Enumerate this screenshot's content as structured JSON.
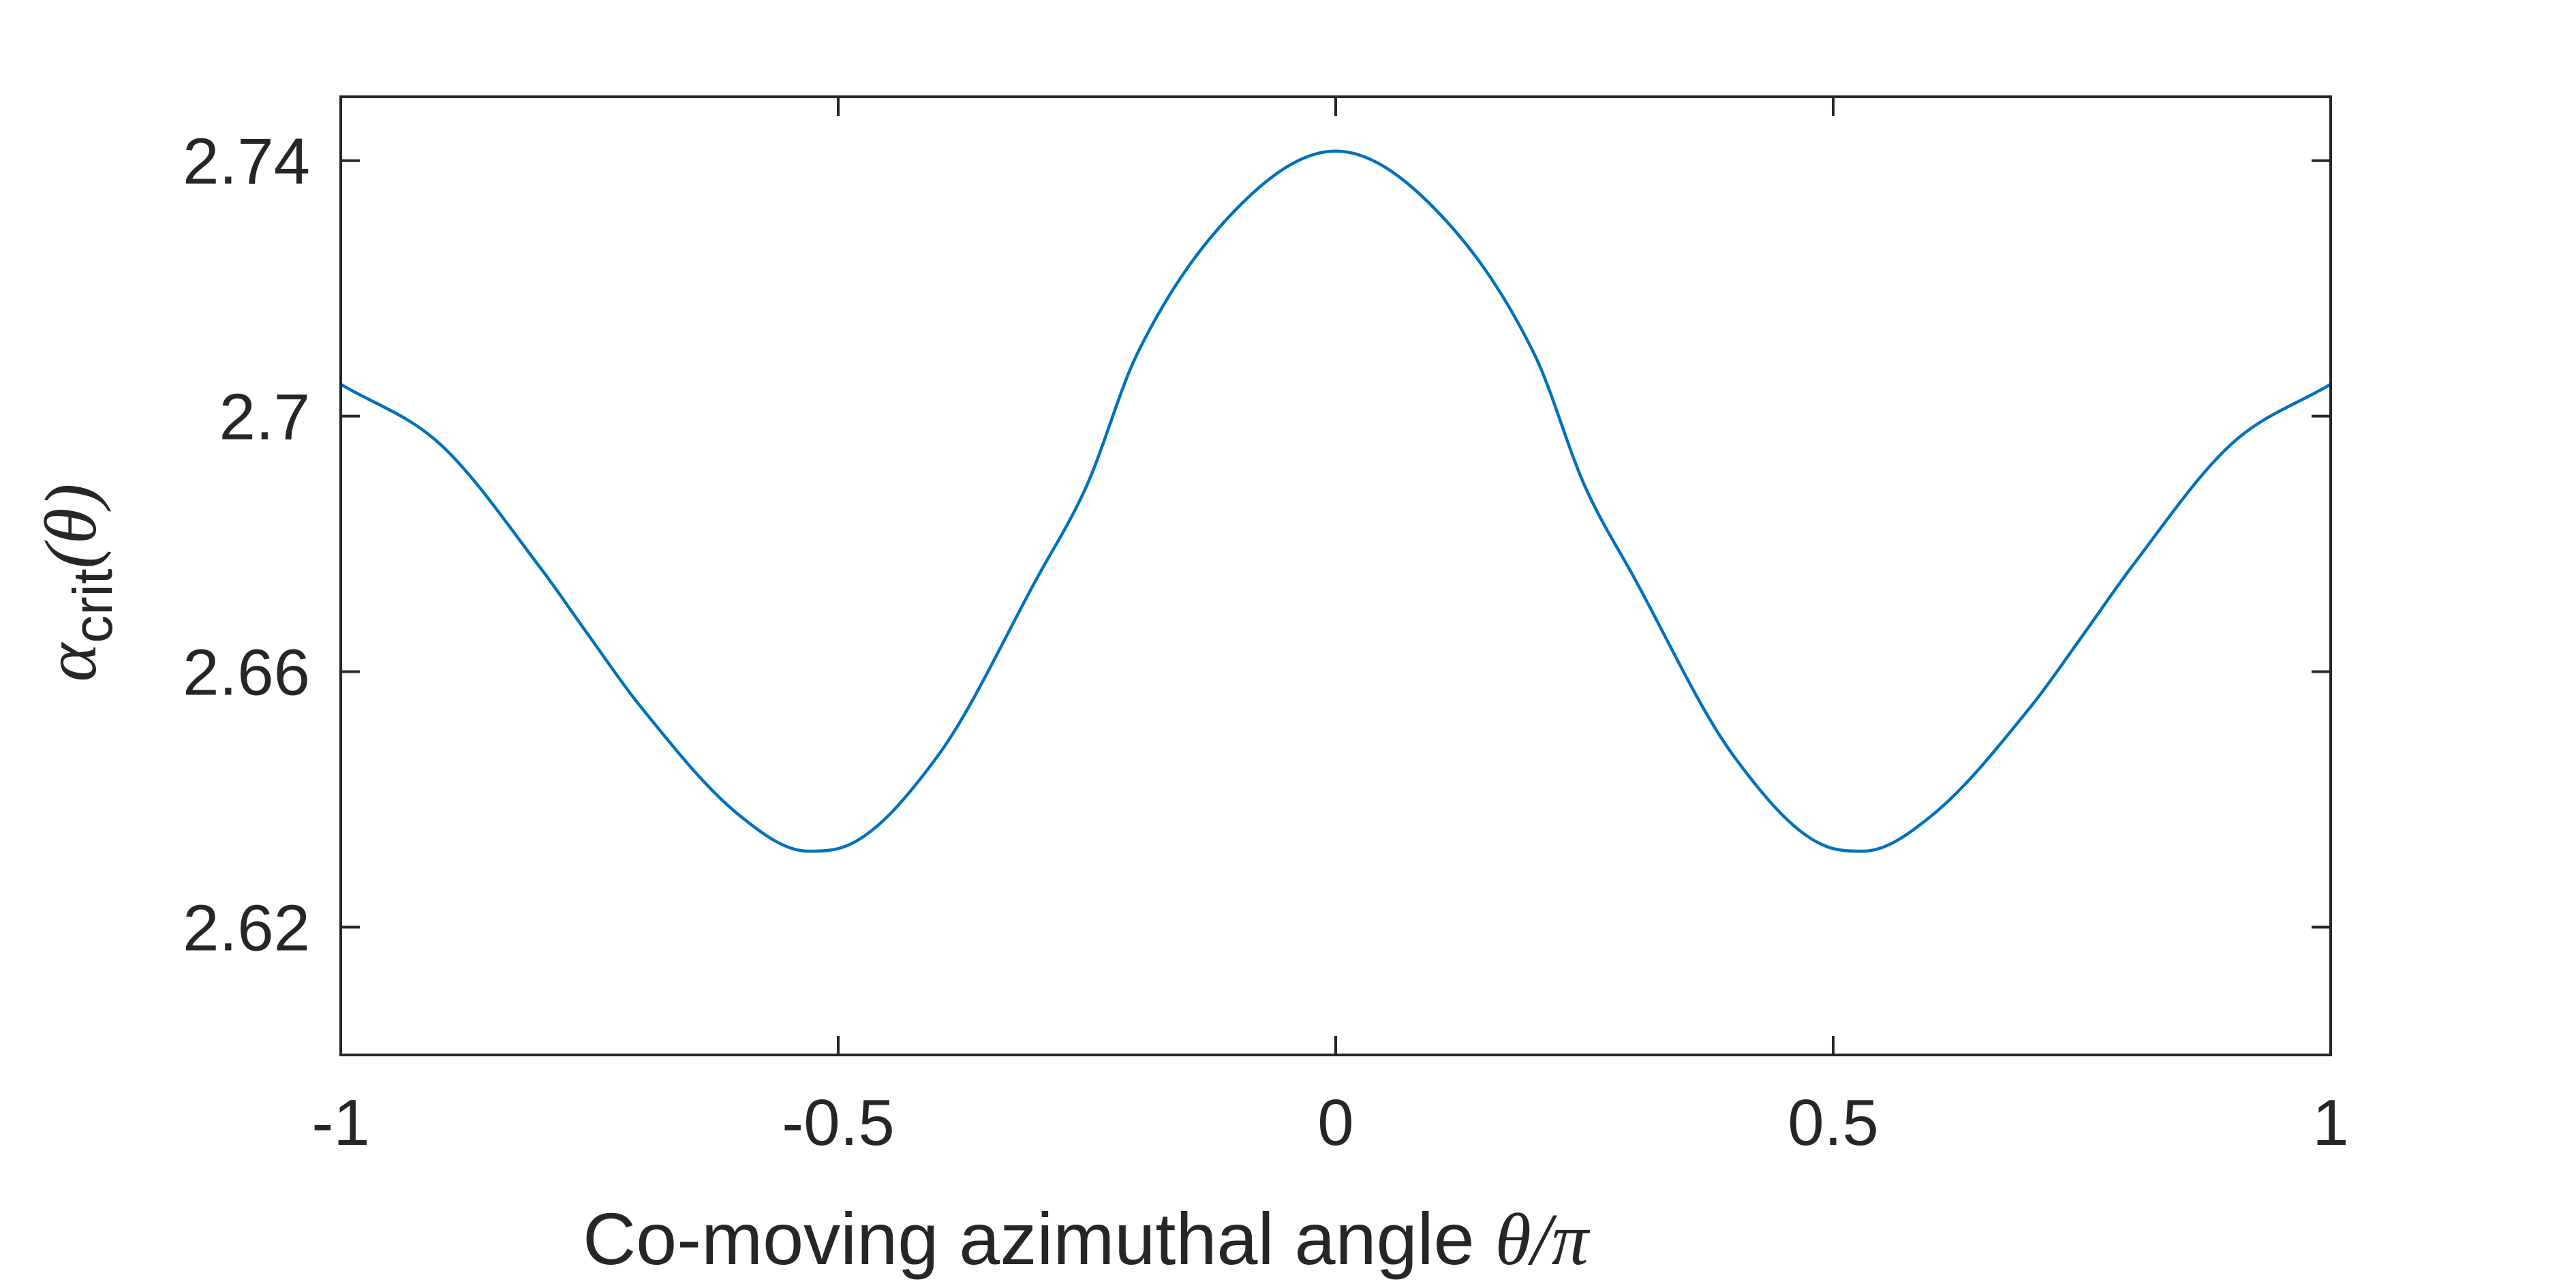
{
  "chart_data": {
    "type": "line",
    "xlabel": {
      "text": "Co-moving azimuthal angle ",
      "symbol": "θ/π"
    },
    "ylabel": {
      "symbol": "α",
      "subscript": "crit",
      "argument": "(θ)"
    },
    "xlim": [
      -1,
      1
    ],
    "ylim": [
      2.6,
      2.75
    ],
    "xticks": [
      -1,
      -0.5,
      0,
      0.5,
      1
    ],
    "xtick_labels": [
      "-1",
      "-0.5",
      "0",
      "0.5",
      "1"
    ],
    "yticks": [
      2.62,
      2.66,
      2.7,
      2.74
    ],
    "ytick_labels": [
      "2.62",
      "2.66",
      "2.7",
      "2.74"
    ],
    "grid": false,
    "line_color": "#0072BD",
    "axis_color": "#262626",
    "series": [
      {
        "x": [
          -1,
          -0.9,
          -0.8,
          -0.75,
          -0.7,
          -0.6,
          -0.53,
          -0.5,
          -0.4,
          -0.3,
          -0.25,
          -0.2,
          -0.1,
          0,
          0.1,
          0.2,
          0.25,
          0.3,
          0.4,
          0.5,
          0.53,
          0.6,
          0.7,
          0.75,
          0.8,
          0.9,
          1
        ],
        "values": [
          2.705,
          2.6956,
          2.6764,
          2.6655,
          2.6548,
          2.6376,
          2.6319,
          2.6323,
          2.6468,
          2.6747,
          2.6892,
          2.7096,
          2.7324,
          2.7415,
          2.7324,
          2.7096,
          2.6892,
          2.6747,
          2.6468,
          2.6323,
          2.6319,
          2.6376,
          2.6548,
          2.6655,
          2.6764,
          2.6956,
          2.705
        ]
      }
    ]
  }
}
